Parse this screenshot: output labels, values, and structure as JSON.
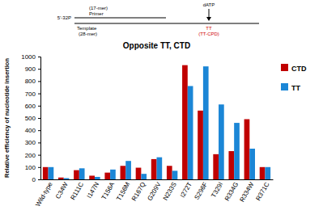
{
  "chart_data": {
    "type": "bar",
    "title": "Opposite TT, CTD",
    "y_label": "Relative efficiency of nucleotide insertion",
    "annotations": [
      "5'-32P",
      "(17-mer)",
      "Primer",
      "Template",
      "(28-mer)",
      "dATP",
      "TT",
      "(TT-CPD)"
    ],
    "categories": [
      "Wild-type",
      "C34W",
      "R111C",
      "I147N",
      "T156A",
      "T156M",
      "R167Q",
      "G209V",
      "N233S",
      "I272T",
      "S296F",
      "T329I",
      "R334G",
      "R334W",
      "R371C"
    ],
    "series": [
      {
        "name": "CTD",
        "color": "#c00000",
        "values": [
          100,
          15,
          75,
          30,
          55,
          110,
          95,
          165,
          110,
          930,
          560,
          205,
          230,
          490,
          100
        ]
      },
      {
        "name": "TT",
        "color": "#1b86d6",
        "values": [
          100,
          10,
          90,
          20,
          80,
          150,
          45,
          180,
          70,
          760,
          920,
          610,
          460,
          250,
          100
        ]
      }
    ],
    "ylim": [
      0,
      1000
    ],
    "yticks": [
      0,
      100,
      200,
      300,
      400,
      500,
      600,
      700,
      800,
      900,
      1000
    ],
    "grid": false,
    "legend": "right"
  }
}
